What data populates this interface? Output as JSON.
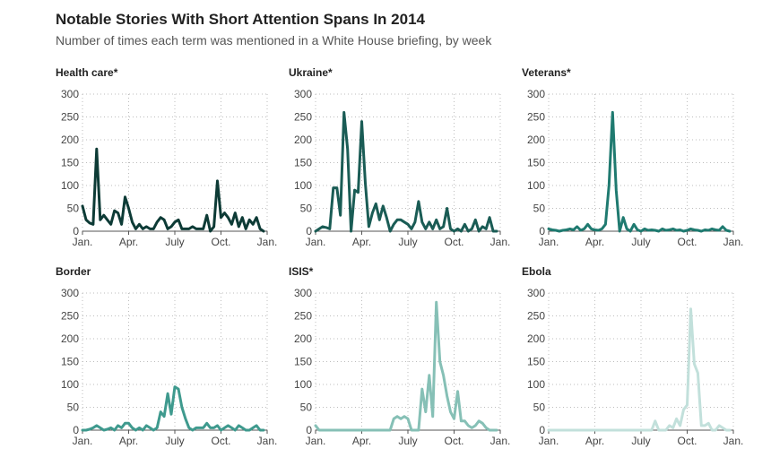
{
  "title": "Notable Stories With Short Attention Spans In 2014",
  "subtitle": "Number of times each term was mentioned in a White House briefing, by week",
  "chart_data": [
    {
      "type": "line",
      "title": "Health care*",
      "color": "#0d3b36",
      "xlabel": "",
      "ylabel": "",
      "ylim": [
        0,
        300
      ],
      "yticks": [
        0,
        50,
        100,
        150,
        200,
        250,
        300
      ],
      "xticks": [
        "Jan.",
        "Apr.",
        "July",
        "Oct.",
        "Jan."
      ],
      "xlim": [
        0,
        52
      ],
      "x": [
        0,
        1,
        2,
        3,
        4,
        5,
        6,
        7,
        8,
        9,
        10,
        11,
        12,
        13,
        14,
        15,
        16,
        17,
        18,
        19,
        20,
        21,
        22,
        23,
        24,
        25,
        26,
        27,
        28,
        29,
        30,
        31,
        32,
        33,
        34,
        35,
        36,
        37,
        38,
        39,
        40,
        41,
        42,
        43,
        44,
        45,
        46,
        47,
        48,
        49,
        50,
        51
      ],
      "values": [
        55,
        25,
        18,
        15,
        180,
        25,
        35,
        25,
        15,
        45,
        40,
        15,
        75,
        50,
        20,
        5,
        15,
        5,
        10,
        5,
        5,
        20,
        30,
        25,
        5,
        10,
        20,
        25,
        5,
        5,
        5,
        10,
        5,
        5,
        5,
        35,
        0,
        10,
        110,
        30,
        40,
        30,
        15,
        40,
        10,
        30,
        5,
        25,
        15,
        30,
        5,
        0
      ]
    },
    {
      "type": "line",
      "title": "Ukraine*",
      "color": "#1a5c55",
      "xlabel": "",
      "ylabel": "",
      "ylim": [
        0,
        300
      ],
      "yticks": [
        0,
        50,
        100,
        150,
        200,
        250,
        300
      ],
      "xticks": [
        "Jan.",
        "Apr.",
        "July",
        "Oct.",
        "Jan."
      ],
      "xlim": [
        0,
        52
      ],
      "x": [
        0,
        1,
        2,
        3,
        4,
        5,
        6,
        7,
        8,
        9,
        10,
        11,
        12,
        13,
        14,
        15,
        16,
        17,
        18,
        19,
        20,
        21,
        22,
        23,
        24,
        25,
        26,
        27,
        28,
        29,
        30,
        31,
        32,
        33,
        34,
        35,
        36,
        37,
        38,
        39,
        40,
        41,
        42,
        43,
        44,
        45,
        46,
        47,
        48,
        49,
        50,
        51
      ],
      "values": [
        0,
        5,
        10,
        8,
        5,
        95,
        95,
        35,
        260,
        180,
        0,
        90,
        85,
        240,
        105,
        10,
        40,
        60,
        25,
        55,
        30,
        0,
        15,
        25,
        25,
        20,
        15,
        5,
        20,
        65,
        20,
        5,
        20,
        5,
        25,
        5,
        10,
        50,
        5,
        0,
        5,
        0,
        15,
        0,
        5,
        25,
        0,
        10,
        5,
        30,
        0,
        0
      ]
    },
    {
      "type": "line",
      "title": "Veterans*",
      "color": "#1f7a70",
      "xlabel": "",
      "ylabel": "",
      "ylim": [
        0,
        300
      ],
      "yticks": [
        0,
        50,
        100,
        150,
        200,
        250,
        300
      ],
      "xticks": [
        "Jan.",
        "Apr.",
        "July",
        "Oct.",
        "Jan."
      ],
      "xlim": [
        0,
        52
      ],
      "x": [
        0,
        1,
        2,
        3,
        4,
        5,
        6,
        7,
        8,
        9,
        10,
        11,
        12,
        13,
        14,
        15,
        16,
        17,
        18,
        19,
        20,
        21,
        22,
        23,
        24,
        25,
        26,
        27,
        28,
        29,
        30,
        31,
        32,
        33,
        34,
        35,
        36,
        37,
        38,
        39,
        40,
        41,
        42,
        43,
        44,
        45,
        46,
        47,
        48,
        49,
        50,
        51
      ],
      "values": [
        5,
        3,
        2,
        0,
        2,
        3,
        5,
        3,
        10,
        2,
        5,
        15,
        5,
        3,
        2,
        5,
        15,
        100,
        260,
        90,
        0,
        30,
        5,
        0,
        15,
        3,
        0,
        5,
        2,
        3,
        2,
        0,
        5,
        2,
        3,
        5,
        2,
        3,
        0,
        2,
        5,
        3,
        2,
        0,
        3,
        2,
        5,
        3,
        2,
        10,
        2,
        0
      ]
    },
    {
      "type": "line",
      "title": "Border",
      "color": "#3f9a8e",
      "xlabel": "",
      "ylabel": "",
      "ylim": [
        0,
        300
      ],
      "yticks": [
        0,
        50,
        100,
        150,
        200,
        250,
        300
      ],
      "xticks": [
        "Jan.",
        "Apr.",
        "July",
        "Oct.",
        "Jan."
      ],
      "xlim": [
        0,
        52
      ],
      "x": [
        0,
        1,
        2,
        3,
        4,
        5,
        6,
        7,
        8,
        9,
        10,
        11,
        12,
        13,
        14,
        15,
        16,
        17,
        18,
        19,
        20,
        21,
        22,
        23,
        24,
        25,
        26,
        27,
        28,
        29,
        30,
        31,
        32,
        33,
        34,
        35,
        36,
        37,
        38,
        39,
        40,
        41,
        42,
        43,
        44,
        45,
        46,
        47,
        48,
        49,
        50,
        51
      ],
      "values": [
        0,
        0,
        2,
        5,
        10,
        5,
        0,
        2,
        5,
        0,
        10,
        5,
        15,
        15,
        5,
        0,
        5,
        0,
        10,
        5,
        0,
        5,
        40,
        30,
        80,
        35,
        95,
        90,
        50,
        25,
        5,
        0,
        5,
        5,
        5,
        15,
        5,
        5,
        10,
        0,
        5,
        10,
        5,
        0,
        10,
        5,
        0,
        0,
        5,
        10,
        0,
        0
      ]
    },
    {
      "type": "line",
      "title": "ISIS*",
      "color": "#86c0b6",
      "xlabel": "",
      "ylabel": "",
      "ylim": [
        0,
        300
      ],
      "yticks": [
        0,
        50,
        100,
        150,
        200,
        250,
        300
      ],
      "xticks": [
        "Jan.",
        "Apr.",
        "July",
        "Oct.",
        "Jan."
      ],
      "xlim": [
        0,
        52
      ],
      "x": [
        0,
        1,
        2,
        3,
        4,
        5,
        6,
        7,
        8,
        9,
        10,
        11,
        12,
        13,
        14,
        15,
        16,
        17,
        18,
        19,
        20,
        21,
        22,
        23,
        24,
        25,
        26,
        27,
        28,
        29,
        30,
        31,
        32,
        33,
        34,
        35,
        36,
        37,
        38,
        39,
        40,
        41,
        42,
        43,
        44,
        45,
        46,
        47,
        48,
        49,
        50,
        51
      ],
      "values": [
        10,
        0,
        0,
        0,
        0,
        0,
        0,
        0,
        0,
        0,
        0,
        0,
        0,
        0,
        0,
        0,
        0,
        0,
        0,
        0,
        0,
        0,
        25,
        30,
        25,
        30,
        25,
        0,
        0,
        0,
        90,
        40,
        120,
        30,
        280,
        150,
        120,
        75,
        40,
        25,
        85,
        20,
        20,
        10,
        5,
        10,
        20,
        15,
        5,
        0,
        0,
        0
      ]
    },
    {
      "type": "line",
      "title": "Ebola",
      "color": "#c2e0db",
      "xlabel": "",
      "ylabel": "",
      "ylim": [
        0,
        300
      ],
      "yticks": [
        0,
        50,
        100,
        150,
        200,
        250,
        300
      ],
      "xticks": [
        "Jan.",
        "Apr.",
        "July",
        "Oct.",
        "Jan."
      ],
      "xlim": [
        0,
        52
      ],
      "x": [
        0,
        1,
        2,
        3,
        4,
        5,
        6,
        7,
        8,
        9,
        10,
        11,
        12,
        13,
        14,
        15,
        16,
        17,
        18,
        19,
        20,
        21,
        22,
        23,
        24,
        25,
        26,
        27,
        28,
        29,
        30,
        31,
        32,
        33,
        34,
        35,
        36,
        37,
        38,
        39,
        40,
        41,
        42,
        43,
        44,
        45,
        46,
        47,
        48,
        49,
        50,
        51
      ],
      "values": [
        0,
        0,
        0,
        0,
        0,
        0,
        0,
        0,
        0,
        0,
        0,
        0,
        0,
        0,
        0,
        0,
        0,
        0,
        0,
        0,
        0,
        0,
        0,
        0,
        0,
        0,
        0,
        0,
        0,
        0,
        20,
        0,
        0,
        0,
        10,
        5,
        25,
        10,
        45,
        55,
        265,
        145,
        125,
        10,
        10,
        15,
        0,
        0,
        10,
        5,
        0,
        0
      ]
    }
  ]
}
